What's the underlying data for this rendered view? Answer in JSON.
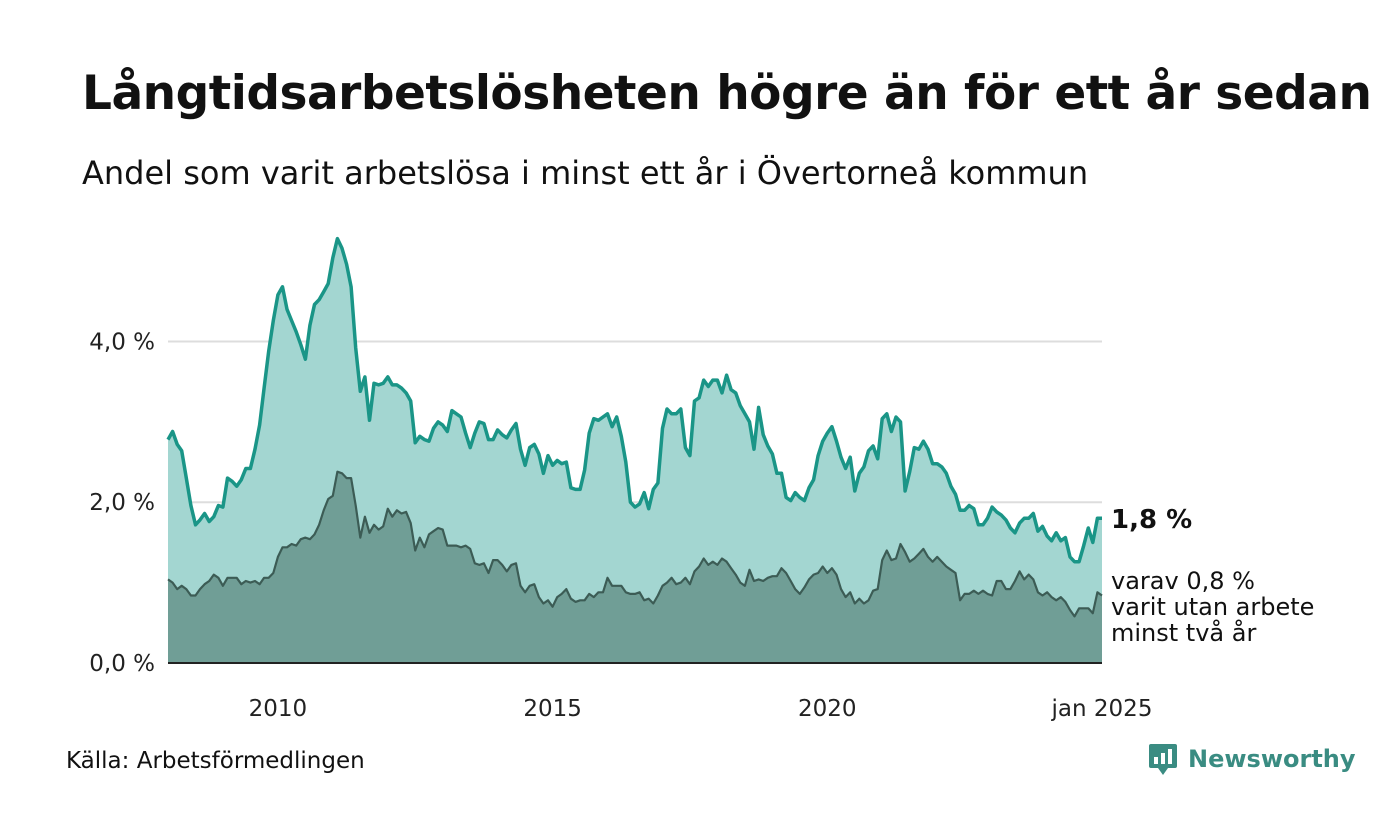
{
  "title": "Långtidsarbetslösheten högre än för ett år sedan",
  "subtitle": "Andel som varit arbetslösa i minst ett år i Övertorneå kommun",
  "source": "Källa: Arbetsförmedlingen",
  "brand": "Newsworthy",
  "colors": {
    "series1_line": "#1a9587",
    "series1_fill": "#a3d6d1",
    "series2_line": "#3c5c55",
    "series2_fill": "#709e96",
    "grid": "#dddddd",
    "axis": "#222222",
    "brand": "#3a8c82"
  },
  "chart_data": {
    "type": "area",
    "title": "Andel som varit arbetslösa i minst ett år i Övertorneå kommun",
    "x_start": 2008.0,
    "x_step_months": 1,
    "x_end_label": "jan 2025",
    "xlim": [
      2008.0,
      2025.0
    ],
    "ylim": [
      0,
      5.3
    ],
    "y_ticks": [
      0,
      2,
      4
    ],
    "y_tick_labels": [
      "0,0 %",
      "2,0 %",
      "4,0 %"
    ],
    "x_ticks": [
      2010,
      2015,
      2020,
      2025.0
    ],
    "x_tick_labels": [
      "2010",
      "2015",
      "2020",
      "jan 2025"
    ],
    "grid": true,
    "series": [
      {
        "name": "Arbetslösa i minst ett år",
        "end_label": "1,8 %",
        "values": [
          2.78,
          2.88,
          2.72,
          2.64,
          2.3,
          1.96,
          1.72,
          1.78,
          1.86,
          1.76,
          1.82,
          1.96,
          1.94,
          2.3,
          2.26,
          2.2,
          2.28,
          2.42,
          2.42,
          2.66,
          2.96,
          3.42,
          3.88,
          4.26,
          4.58,
          4.68,
          4.4,
          4.26,
          4.12,
          3.96,
          3.78,
          4.2,
          4.46,
          4.52,
          4.62,
          4.72,
          5.04,
          5.28,
          5.16,
          4.96,
          4.68,
          3.92,
          3.38,
          3.56,
          3.02,
          3.48,
          3.46,
          3.48,
          3.56,
          3.46,
          3.46,
          3.42,
          3.36,
          3.26,
          2.74,
          2.82,
          2.78,
          2.76,
          2.92,
          3.0,
          2.96,
          2.88,
          3.14,
          3.1,
          3.06,
          2.86,
          2.68,
          2.86,
          3.0,
          2.98,
          2.78,
          2.78,
          2.9,
          2.84,
          2.8,
          2.9,
          2.98,
          2.66,
          2.46,
          2.68,
          2.72,
          2.6,
          2.36,
          2.58,
          2.46,
          2.52,
          2.48,
          2.5,
          2.18,
          2.16,
          2.16,
          2.4,
          2.86,
          3.04,
          3.02,
          3.06,
          3.1,
          2.94,
          3.06,
          2.82,
          2.5,
          2.0,
          1.94,
          1.98,
          2.12,
          1.92,
          2.16,
          2.24,
          2.92,
          3.16,
          3.1,
          3.1,
          3.16,
          2.68,
          2.58,
          3.26,
          3.3,
          3.52,
          3.44,
          3.52,
          3.52,
          3.36,
          3.58,
          3.4,
          3.36,
          3.2,
          3.1,
          3.0,
          2.66,
          3.18,
          2.84,
          2.7,
          2.6,
          2.36,
          2.36,
          2.06,
          2.02,
          2.12,
          2.06,
          2.02,
          2.18,
          2.28,
          2.58,
          2.76,
          2.86,
          2.94,
          2.76,
          2.56,
          2.42,
          2.56,
          2.14,
          2.36,
          2.44,
          2.64,
          2.7,
          2.54,
          3.04,
          3.1,
          2.88,
          3.06,
          3.0,
          2.14,
          2.38,
          2.68,
          2.66,
          2.76,
          2.66,
          2.48,
          2.48,
          2.44,
          2.36,
          2.2,
          2.1,
          1.9,
          1.9,
          1.96,
          1.92,
          1.72,
          1.72,
          1.8,
          1.94,
          1.88,
          1.84,
          1.78,
          1.68,
          1.62,
          1.74,
          1.8,
          1.8,
          1.86,
          1.64,
          1.7,
          1.58,
          1.52,
          1.62,
          1.52,
          1.56,
          1.32,
          1.26,
          1.26,
          1.46,
          1.68,
          1.5,
          1.8,
          1.8
        ]
      },
      {
        "name": "varav varit utan arbete minst två år",
        "end_label": [
          "varav 0,8 %",
          "varit utan arbete",
          "minst två år"
        ],
        "values": [
          1.04,
          1.0,
          0.92,
          0.96,
          0.92,
          0.84,
          0.84,
          0.92,
          0.98,
          1.02,
          1.1,
          1.06,
          0.96,
          1.06,
          1.06,
          1.06,
          0.98,
          1.02,
          1.0,
          1.02,
          0.98,
          1.06,
          1.06,
          1.12,
          1.32,
          1.44,
          1.44,
          1.48,
          1.46,
          1.54,
          1.56,
          1.54,
          1.6,
          1.72,
          1.9,
          2.04,
          2.08,
          2.38,
          2.36,
          2.3,
          2.3,
          1.96,
          1.56,
          1.82,
          1.62,
          1.72,
          1.66,
          1.7,
          1.92,
          1.82,
          1.9,
          1.86,
          1.88,
          1.74,
          1.4,
          1.56,
          1.44,
          1.6,
          1.64,
          1.68,
          1.66,
          1.46,
          1.46,
          1.46,
          1.44,
          1.46,
          1.42,
          1.24,
          1.22,
          1.24,
          1.12,
          1.28,
          1.28,
          1.22,
          1.14,
          1.22,
          1.24,
          0.96,
          0.88,
          0.96,
          0.98,
          0.82,
          0.74,
          0.78,
          0.7,
          0.82,
          0.86,
          0.92,
          0.8,
          0.76,
          0.78,
          0.78,
          0.86,
          0.82,
          0.88,
          0.88,
          1.06,
          0.96,
          0.96,
          0.96,
          0.88,
          0.86,
          0.86,
          0.88,
          0.78,
          0.8,
          0.74,
          0.84,
          0.96,
          1.0,
          1.06,
          0.98,
          1.0,
          1.06,
          0.98,
          1.14,
          1.2,
          1.3,
          1.22,
          1.26,
          1.22,
          1.3,
          1.26,
          1.18,
          1.1,
          1.0,
          0.96,
          1.16,
          1.02,
          1.04,
          1.02,
          1.06,
          1.08,
          1.08,
          1.18,
          1.12,
          1.02,
          0.92,
          0.86,
          0.94,
          1.04,
          1.1,
          1.12,
          1.2,
          1.12,
          1.18,
          1.1,
          0.92,
          0.82,
          0.88,
          0.74,
          0.8,
          0.74,
          0.78,
          0.9,
          0.92,
          1.28,
          1.4,
          1.28,
          1.3,
          1.48,
          1.38,
          1.26,
          1.3,
          1.36,
          1.42,
          1.32,
          1.26,
          1.32,
          1.26,
          1.2,
          1.16,
          1.12,
          0.78,
          0.86,
          0.86,
          0.9,
          0.86,
          0.9,
          0.86,
          0.84,
          1.02,
          1.02,
          0.92,
          0.92,
          1.02,
          1.14,
          1.04,
          1.1,
          1.04,
          0.88,
          0.84,
          0.88,
          0.82,
          0.78,
          0.82,
          0.76,
          0.66,
          0.58,
          0.68,
          0.68,
          0.68,
          0.62,
          0.88,
          0.84
        ]
      }
    ]
  }
}
